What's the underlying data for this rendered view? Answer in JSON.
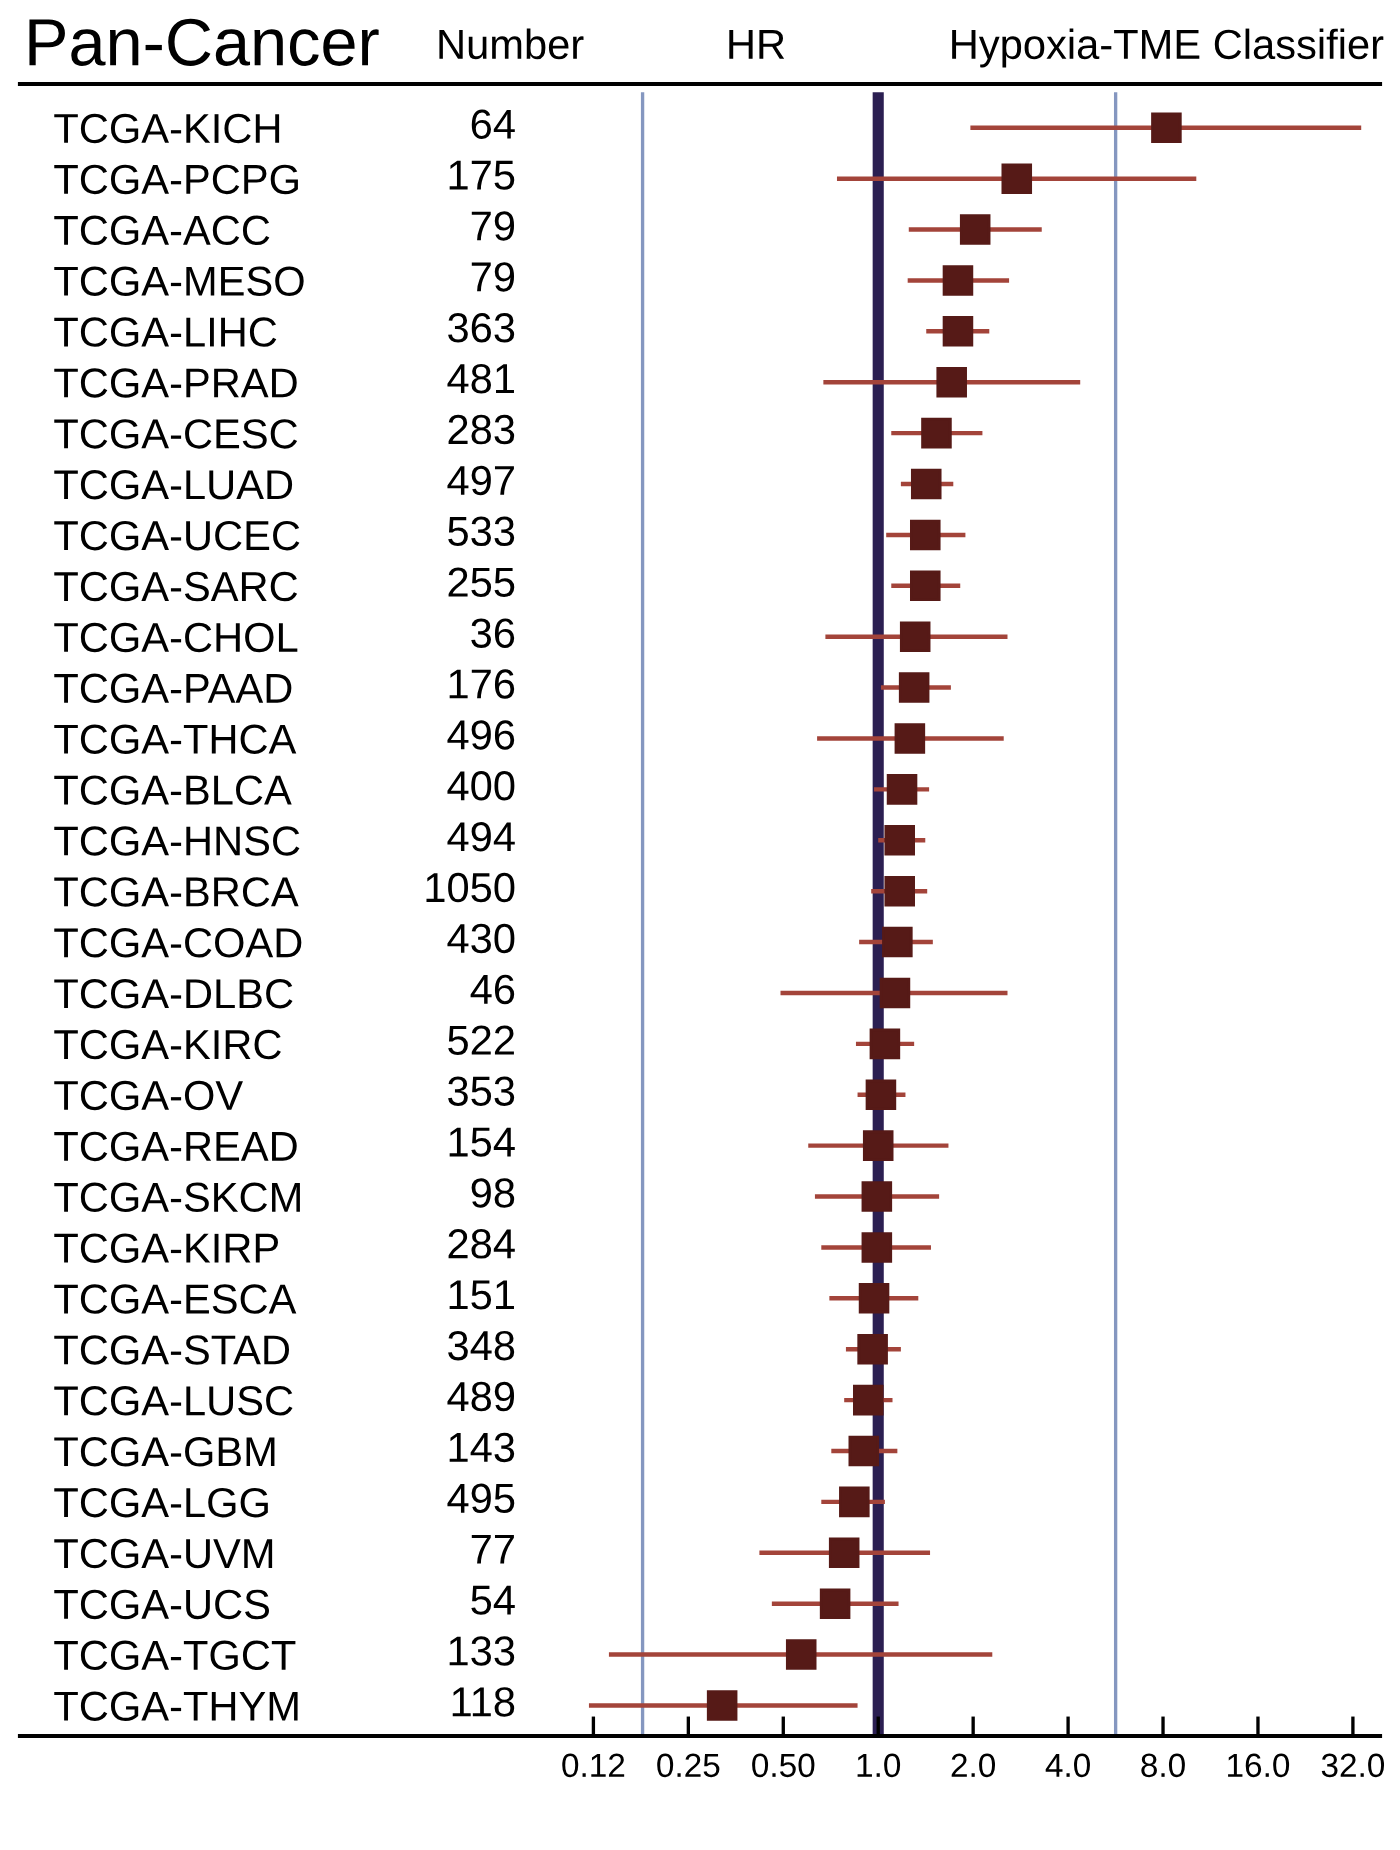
{
  "chart_data": {
    "type": "scatter",
    "orientation": "horizontal",
    "title": "Hypoxia-TME Classifier",
    "ylabel": "Pan-Cancer",
    "y2label": "Number",
    "xlabel": "HR",
    "categories": [
      "TCGA-KICH",
      "TCGA-PCPG",
      "TCGA-ACC",
      "TCGA-MESO",
      "TCGA-LIHC",
      "TCGA-PRAD",
      "TCGA-CESC",
      "TCGA-LUAD",
      "TCGA-UCEC",
      "TCGA-SARC",
      "TCGA-CHOL",
      "TCGA-PAAD",
      "TCGA-THCA",
      "TCGA-BLCA",
      "TCGA-HNSC",
      "TCGA-BRCA",
      "TCGA-COAD",
      "TCGA-DLBC",
      "TCGA-KIRC",
      "TCGA-OV",
      "TCGA-READ",
      "TCGA-SKCM",
      "TCGA-KIRP",
      "TCGA-ESCA",
      "TCGA-STAD",
      "TCGA-LUSC",
      "TCGA-GBM",
      "TCGA-LGG",
      "TCGA-UVM",
      "TCGA-UCS",
      "TCGA-TGCT",
      "TCGA-THYM"
    ],
    "y2_categories": [
      "64",
      "175",
      "79",
      "79",
      "363",
      "481",
      "283",
      "497",
      "533",
      "255",
      "36",
      "176",
      "496",
      "400",
      "494",
      "1050",
      "430",
      "46",
      "522",
      "353",
      "154",
      "98",
      "284",
      "151",
      "348",
      "489",
      "143",
      "495",
      "77",
      "54",
      "133",
      "118"
    ],
    "values": [
      8.2,
      2.75,
      2.03,
      1.79,
      1.79,
      1.71,
      1.53,
      1.42,
      1.41,
      1.41,
      1.31,
      1.3,
      1.26,
      1.19,
      1.17,
      1.17,
      1.15,
      1.13,
      1.05,
      1.02,
      1.0,
      0.99,
      0.99,
      0.97,
      0.96,
      0.93,
      0.9,
      0.84,
      0.78,
      0.73,
      0.57,
      0.32
    ],
    "errors": [
      [
        1.96,
        34
      ],
      [
        0.74,
        10.2
      ],
      [
        1.25,
        3.3
      ],
      [
        1.24,
        2.6
      ],
      [
        1.42,
        2.25
      ],
      [
        0.67,
        4.37
      ],
      [
        1.1,
        2.14
      ],
      [
        1.18,
        1.73
      ],
      [
        1.06,
        1.89
      ],
      [
        1.1,
        1.82
      ],
      [
        0.68,
        2.57
      ],
      [
        1.02,
        1.7
      ],
      [
        0.64,
        2.5
      ],
      [
        0.97,
        1.45
      ],
      [
        1.0,
        1.41
      ],
      [
        0.95,
        1.43
      ],
      [
        0.87,
        1.49
      ],
      [
        0.49,
        2.57
      ],
      [
        0.85,
        1.3
      ],
      [
        0.86,
        1.22
      ],
      [
        0.6,
        1.67
      ],
      [
        0.63,
        1.56
      ],
      [
        0.66,
        1.47
      ],
      [
        0.7,
        1.34
      ],
      [
        0.79,
        1.18
      ],
      [
        0.78,
        1.11
      ],
      [
        0.71,
        1.15
      ],
      [
        0.66,
        1.05
      ],
      [
        0.42,
        1.46
      ],
      [
        0.46,
        1.16
      ],
      [
        0.14,
        2.3
      ],
      [
        0.121,
        0.86
      ]
    ],
    "color": "#561a17",
    "marker": "square",
    "log": "x",
    "grid": false,
    "xlim": [
      0.0019,
      39
    ],
    "xticks": [
      {
        "value": 0.125,
        "label": "0.12"
      },
      {
        "value": 0.25,
        "label": "0.25"
      },
      {
        "value": 0.5,
        "label": "0.50"
      },
      {
        "value": 1,
        "label": "1.0"
      },
      {
        "value": 2,
        "label": "2.0"
      },
      {
        "value": 4,
        "label": "4.0"
      },
      {
        "value": 8,
        "label": "8.0"
      },
      {
        "value": 16,
        "label": "16.0"
      },
      {
        "value": 32,
        "label": "32.0"
      }
    ],
    "ref_lines": [
      {
        "axis": "x",
        "value": 0.179,
        "color": "#8597c0"
      },
      {
        "axis": "x",
        "value": 1,
        "color": "#2b1f52"
      },
      {
        "axis": "x",
        "value": 5.66,
        "color": "#8597c0"
      }
    ]
  }
}
